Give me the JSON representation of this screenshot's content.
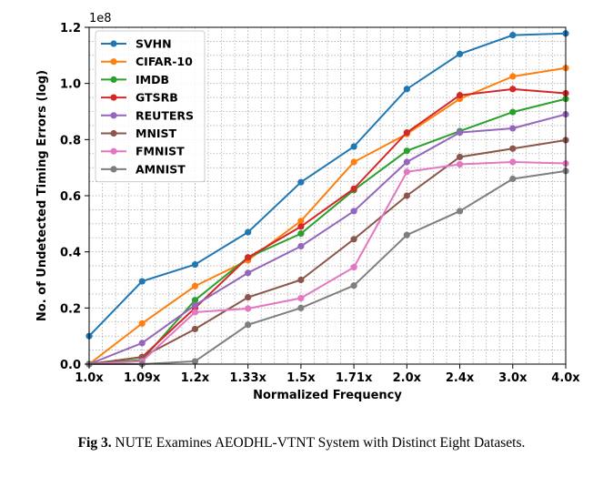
{
  "caption": {
    "prefix": "Fig 3.",
    "text": " NUTE Examines AEODHL-VTNT System with Distinct Eight Datasets."
  },
  "chart_data": {
    "type": "line",
    "title": "",
    "xlabel": "Normalized Frequency",
    "ylabel": "No. of Undetected Timing Errors (log)",
    "y_multiplier_label": "1e8",
    "categories": [
      "1.0x",
      "1.09x",
      "1.2x",
      "1.33x",
      "1.5x",
      "1.71x",
      "2.0x",
      "2.4x",
      "3.0x",
      "4.0x"
    ],
    "yticks": [
      "0.0",
      "0.2",
      "0.4",
      "0.6",
      "0.8",
      "1.0",
      "1.2"
    ],
    "ylim": [
      0,
      1.2
    ],
    "grid": true,
    "legend_position": "upper-left",
    "series": [
      {
        "name": "SVHN",
        "color": "#1f77b4",
        "values": [
          0.1,
          0.295,
          0.355,
          0.47,
          0.648,
          0.775,
          0.98,
          1.105,
          1.172,
          1.178
        ]
      },
      {
        "name": "CIFAR-10",
        "color": "#ff7f0e",
        "values": [
          0.0,
          0.145,
          0.278,
          0.37,
          0.51,
          0.72,
          0.82,
          0.945,
          1.025,
          1.055
        ]
      },
      {
        "name": "IMDB",
        "color": "#2ca02c",
        "values": [
          0.0,
          0.015,
          0.228,
          0.38,
          0.465,
          0.62,
          0.76,
          0.83,
          0.898,
          0.945
        ]
      },
      {
        "name": "GTSRB",
        "color": "#d62728",
        "values": [
          0.0,
          0.025,
          0.2,
          0.38,
          0.49,
          0.625,
          0.825,
          0.958,
          0.98,
          0.965
        ]
      },
      {
        "name": "REUTERS",
        "color": "#9467bd",
        "values": [
          0.0,
          0.075,
          0.21,
          0.325,
          0.42,
          0.545,
          0.72,
          0.825,
          0.84,
          0.89
        ]
      },
      {
        "name": "MNIST",
        "color": "#8c564b",
        "values": [
          0.0,
          0.025,
          0.125,
          0.238,
          0.3,
          0.445,
          0.6,
          0.738,
          0.768,
          0.798
        ]
      },
      {
        "name": "FMNIST",
        "color": "#e377c2",
        "values": [
          0.0,
          0.01,
          0.185,
          0.198,
          0.235,
          0.345,
          0.685,
          0.712,
          0.72,
          0.715
        ]
      },
      {
        "name": "AMNIST",
        "color": "#7f7f7f",
        "values": [
          0.0,
          0.0,
          0.01,
          0.14,
          0.2,
          0.28,
          0.46,
          0.545,
          0.66,
          0.688
        ]
      }
    ]
  }
}
